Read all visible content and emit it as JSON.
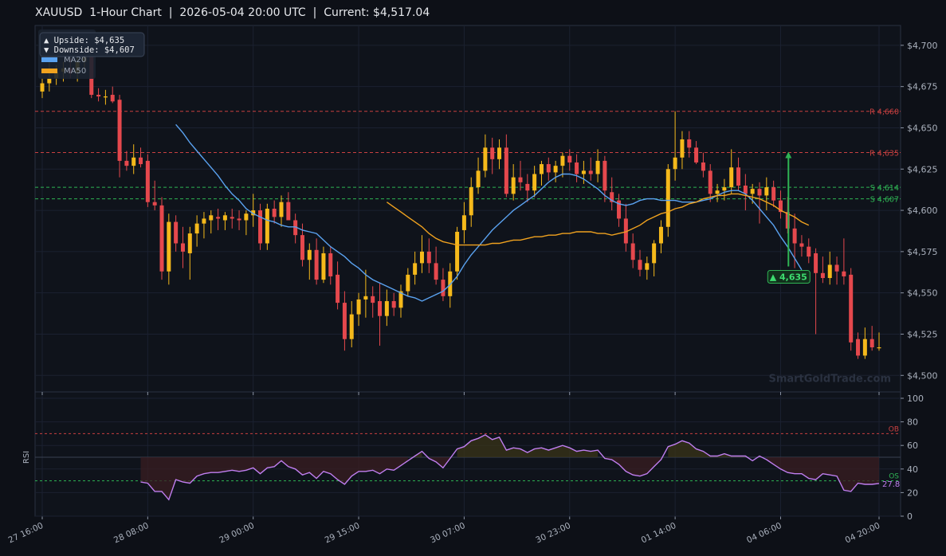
{
  "title": "XAUUSD  1-Hour Chart  |  2026-05-04 20:00 UTC  |  Current: $4,517.04",
  "colors": {
    "background": "#0d1017",
    "panel": "#0f131b",
    "grid": "#1b2130",
    "bull": "#f5b91b",
    "bear": "#e5484d",
    "ma20": "#5aa2f0",
    "ma50": "#f0a21f",
    "resistance": "#c94040",
    "support": "#2fb454",
    "rsi": "#c07ef0",
    "ob": "#c94040",
    "os": "#2fb454"
  },
  "info_box": {
    "upside": "▲ Upside:   $4,635",
    "downside": "▼ Downside: $4,607"
  },
  "legend": {
    "ma20": "MA20",
    "ma50": "MA50"
  },
  "target_label": "▲ 4,635",
  "watermark": "SmartGoldTrade.com",
  "rsi_axis_label": "RSI",
  "rsi_ob_label": "OB",
  "rsi_os_label": "OS",
  "rsi_current_label": "27.8",
  "chart_data": [
    {
      "type": "candlestick",
      "title": "XAUUSD 1-Hour Chart",
      "x_tick_labels": [
        "27 16:00",
        "28 08:00",
        "29 00:00",
        "29 15:00",
        "30 07:00",
        "30 23:00",
        "01 14:00",
        "04 06:00",
        "04 20:00"
      ],
      "x_tick_index": [
        0,
        15,
        30,
        45,
        60,
        75,
        90,
        105,
        119
      ],
      "ylim": [
        4490,
        4712
      ],
      "y_ticks": [
        4500,
        4525,
        4550,
        4575,
        4600,
        4625,
        4650,
        4675,
        4700
      ],
      "y_tick_labels": [
        "$4,500",
        "$4,525",
        "$4,550",
        "$4,575",
        "$4,600",
        "$4,625",
        "$4,650",
        "$4,675",
        "$4,700"
      ],
      "levels": [
        {
          "label": "R 4,660",
          "value": 4660,
          "kind": "resistance"
        },
        {
          "label": "R 4,635",
          "value": 4635,
          "kind": "resistance"
        },
        {
          "label": "S 4,614",
          "value": 4614,
          "kind": "support"
        },
        {
          "label": "S 4,607",
          "value": 4607,
          "kind": "support"
        }
      ],
      "target": {
        "index": 106,
        "from": 4566,
        "to": 4635
      },
      "candles": [
        [
          4672,
          4680,
          4668,
          4677
        ],
        [
          4677,
          4690,
          4672,
          4680
        ],
        [
          4680,
          4688,
          4676,
          4684
        ],
        [
          4684,
          4690,
          4678,
          4686
        ],
        [
          4686,
          4692,
          4680,
          4683
        ],
        [
          4683,
          4694,
          4678,
          4690
        ],
        [
          4690,
          4698,
          4685,
          4693
        ],
        [
          4693,
          4695,
          4668,
          4670
        ],
        [
          4670,
          4674,
          4666,
          4669
        ],
        [
          4669,
          4673,
          4664,
          4669
        ],
        [
          4670,
          4675,
          4665,
          4666
        ],
        [
          4667,
          4670,
          4620,
          4630
        ],
        [
          4630,
          4636,
          4624,
          4627
        ],
        [
          4627,
          4640,
          4622,
          4632
        ],
        [
          4632,
          4638,
          4626,
          4628
        ],
        [
          4630,
          4634,
          4602,
          4605
        ],
        [
          4605,
          4618,
          4600,
          4603
        ],
        [
          4603,
          4608,
          4558,
          4563
        ],
        [
          4563,
          4598,
          4555,
          4593
        ],
        [
          4593,
          4597,
          4575,
          4580
        ],
        [
          4580,
          4590,
          4565,
          4575
        ],
        [
          4574,
          4590,
          4558,
          4586
        ],
        [
          4586,
          4597,
          4578,
          4592
        ],
        [
          4592,
          4599,
          4583,
          4595
        ],
        [
          4594,
          4600,
          4586,
          4597
        ],
        [
          4596,
          4601,
          4588,
          4595
        ],
        [
          4594,
          4599,
          4588,
          4597
        ],
        [
          4596,
          4601,
          4589,
          4595
        ],
        [
          4595,
          4600,
          4588,
          4594
        ],
        [
          4594,
          4600,
          4585,
          4598
        ],
        [
          4597,
          4610,
          4590,
          4600
        ],
        [
          4600,
          4604,
          4576,
          4580
        ],
        [
          4580,
          4604,
          4576,
          4601
        ],
        [
          4601,
          4606,
          4592,
          4596
        ],
        [
          4596,
          4609,
          4590,
          4605
        ],
        [
          4605,
          4611,
          4595,
          4594
        ],
        [
          4594,
          4598,
          4580,
          4585
        ],
        [
          4585,
          4592,
          4566,
          4570
        ],
        [
          4570,
          4580,
          4558,
          4576
        ],
        [
          4576,
          4583,
          4555,
          4558
        ],
        [
          4558,
          4578,
          4556,
          4574
        ],
        [
          4574,
          4578,
          4555,
          4560
        ],
        [
          4561,
          4569,
          4540,
          4544
        ],
        [
          4544,
          4551,
          4515,
          4522
        ],
        [
          4522,
          4545,
          4517,
          4537
        ],
        [
          4537,
          4550,
          4530,
          4546
        ],
        [
          4546,
          4564,
          4535,
          4548
        ],
        [
          4548,
          4554,
          4535,
          4544
        ],
        [
          4545,
          4556,
          4518,
          4536
        ],
        [
          4536,
          4552,
          4530,
          4545
        ],
        [
          4545,
          4550,
          4536,
          4541
        ],
        [
          4541,
          4555,
          4535,
          4551
        ],
        [
          4551,
          4565,
          4548,
          4561
        ],
        [
          4561,
          4575,
          4555,
          4568
        ],
        [
          4568,
          4585,
          4562,
          4575
        ],
        [
          4575,
          4583,
          4562,
          4568
        ],
        [
          4568,
          4578,
          4555,
          4558
        ],
        [
          4558,
          4565,
          4545,
          4548
        ],
        [
          4548,
          4568,
          4541,
          4563
        ],
        [
          4563,
          4590,
          4558,
          4587
        ],
        [
          4588,
          4605,
          4580,
          4597
        ],
        [
          4597,
          4620,
          4590,
          4614
        ],
        [
          4614,
          4632,
          4610,
          4624
        ],
        [
          4624,
          4646,
          4620,
          4638
        ],
        [
          4638,
          4644,
          4622,
          4631
        ],
        [
          4631,
          4643,
          4625,
          4638
        ],
        [
          4638,
          4646,
          4608,
          4610
        ],
        [
          4610,
          4628,
          4606,
          4620
        ],
        [
          4620,
          4630,
          4612,
          4617
        ],
        [
          4616,
          4622,
          4605,
          4612
        ],
        [
          4612,
          4627,
          4608,
          4622
        ],
        [
          4622,
          4630,
          4615,
          4628
        ],
        [
          4628,
          4632,
          4618,
          4623
        ],
        [
          4623,
          4630,
          4617,
          4627
        ],
        [
          4627,
          4635,
          4620,
          4633
        ],
        [
          4633,
          4637,
          4624,
          4629
        ],
        [
          4629,
          4634,
          4617,
          4622
        ],
        [
          4622,
          4630,
          4616,
          4624
        ],
        [
          4624,
          4632,
          4618,
          4622
        ],
        [
          4622,
          4637,
          4617,
          4630
        ],
        [
          4630,
          4633,
          4605,
          4612
        ],
        [
          4611,
          4620,
          4600,
          4605
        ],
        [
          4606,
          4610,
          4590,
          4595
        ],
        [
          4595,
          4604,
          4575,
          4580
        ],
        [
          4580,
          4586,
          4565,
          4570
        ],
        [
          4570,
          4576,
          4560,
          4564
        ],
        [
          4564,
          4572,
          4558,
          4568
        ],
        [
          4568,
          4582,
          4560,
          4580
        ],
        [
          4580,
          4594,
          4574,
          4590
        ],
        [
          4590,
          4628,
          4584,
          4625
        ],
        [
          4625,
          4660,
          4618,
          4632
        ],
        [
          4632,
          4648,
          4625,
          4643
        ],
        [
          4643,
          4648,
          4632,
          4638
        ],
        [
          4638,
          4642,
          4628,
          4629
        ],
        [
          4629,
          4635,
          4620,
          4624
        ],
        [
          4624,
          4628,
          4605,
          4610
        ],
        [
          4610,
          4616,
          4605,
          4612
        ],
        [
          4612,
          4619,
          4606,
          4614
        ],
        [
          4614,
          4637,
          4610,
          4626
        ],
        [
          4626,
          4632,
          4612,
          4615
        ],
        [
          4615,
          4622,
          4600,
          4610
        ],
        [
          4610,
          4616,
          4604,
          4613
        ],
        [
          4613,
          4617,
          4592,
          4609
        ],
        [
          4609,
          4620,
          4600,
          4614
        ],
        [
          4614,
          4618,
          4602,
          4606
        ],
        [
          4606,
          4612,
          4595,
          4599
        ],
        [
          4599,
          4608,
          4586,
          4589
        ],
        [
          4589,
          4598,
          4565,
          4580
        ],
        [
          4580,
          4585,
          4572,
          4578
        ],
        [
          4578,
          4583,
          4568,
          4572
        ],
        [
          4574,
          4577,
          4525,
          4562
        ],
        [
          4562,
          4572,
          4556,
          4559
        ],
        [
          4559,
          4575,
          4555,
          4567
        ],
        [
          4567,
          4572,
          4555,
          4563
        ],
        [
          4563,
          4583,
          4555,
          4560
        ],
        [
          4561,
          4565,
          4515,
          4520
        ],
        [
          4522,
          4526,
          4510,
          4512
        ],
        [
          4512,
          4529,
          4510,
          4522
        ],
        [
          4522,
          4530,
          4515,
          4517
        ],
        [
          4517,
          4526,
          4515,
          4517
        ]
      ],
      "series": [
        {
          "name": "MA20",
          "start_index": 19,
          "values": [
            4652,
            4647,
            4641,
            4636,
            4631,
            4626,
            4621,
            4615,
            4610,
            4606,
            4601,
            4598,
            4596,
            4594,
            4593,
            4591,
            4590,
            4590,
            4588,
            4587,
            4586,
            4582,
            4578,
            4575,
            4572,
            4568,
            4565,
            4561,
            4558,
            4556,
            4554,
            4552,
            4550,
            4548,
            4547,
            4545,
            4547,
            4549,
            4551,
            4555,
            4560,
            4567,
            4573,
            4578,
            4583,
            4588,
            4592,
            4596,
            4600,
            4603,
            4606,
            4609,
            4613,
            4617,
            4620,
            4622,
            4622,
            4621,
            4619,
            4616,
            4613,
            4609,
            4606,
            4604,
            4603,
            4604,
            4606,
            4607,
            4607,
            4606,
            4606,
            4606,
            4605,
            4605,
            4605,
            4606,
            4607,
            4609,
            4611,
            4612,
            4612,
            4610,
            4606,
            4601,
            4596,
            4591,
            4584,
            4578,
            4571,
            4564
          ]
        },
        {
          "name": "MA50",
          "start_index": 49,
          "values": [
            4605,
            4602,
            4599,
            4596,
            4593,
            4590,
            4586,
            4583,
            4581,
            4580,
            4579,
            4579,
            4579,
            4579,
            4579,
            4580,
            4580,
            4581,
            4582,
            4582,
            4583,
            4584,
            4584,
            4585,
            4585,
            4586,
            4586,
            4587,
            4587,
            4587,
            4586,
            4586,
            4585,
            4586,
            4587,
            4589,
            4591,
            4594,
            4596,
            4598,
            4599,
            4601,
            4602,
            4604,
            4605,
            4607,
            4608,
            4609,
            4609,
            4610,
            4610,
            4609,
            4608,
            4607,
            4605,
            4603,
            4600,
            4598,
            4596,
            4593,
            4591
          ]
        }
      ]
    },
    {
      "type": "line",
      "title": "RSI",
      "ylim": [
        0,
        100
      ],
      "y_ticks": [
        0,
        20,
        40,
        60,
        80,
        100
      ],
      "overbought": 70,
      "oversold": 30,
      "midline": 50,
      "series": [
        {
          "name": "RSI",
          "start_index": 14,
          "values": [
            29,
            28,
            21,
            21,
            14,
            31,
            29,
            28,
            34,
            36,
            37,
            37,
            38,
            39,
            38,
            39,
            41,
            36,
            41,
            42,
            47,
            42,
            40,
            35,
            37,
            32,
            38,
            36,
            31,
            27,
            34,
            38,
            38,
            39,
            36,
            40,
            39,
            43,
            47,
            51,
            55,
            49,
            46,
            41,
            49,
            57,
            59,
            64,
            66,
            69,
            65,
            67,
            56,
            58,
            57,
            54,
            57,
            58,
            56,
            58,
            60,
            58,
            55,
            56,
            55,
            56,
            49,
            48,
            44,
            38,
            35,
            34,
            36,
            42,
            48,
            59,
            61,
            64,
            62,
            57,
            55,
            51,
            51,
            53,
            51,
            51,
            51,
            47,
            51,
            48,
            44,
            40,
            37,
            36,
            36,
            32,
            31,
            36,
            35,
            34,
            22,
            21,
            28,
            27,
            27,
            27.8
          ]
        }
      ]
    }
  ]
}
